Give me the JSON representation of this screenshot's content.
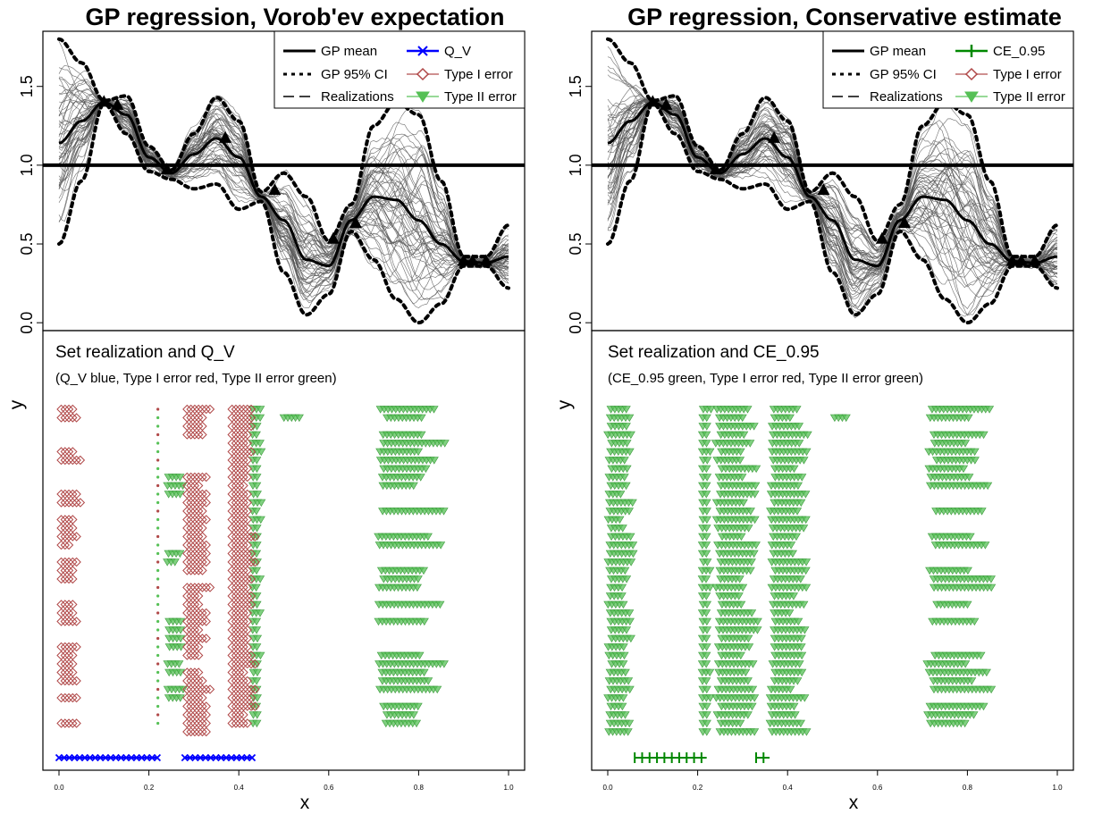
{
  "colors": {
    "black": "#000000",
    "realization": "#555555",
    "qv_blue": "#0000ff",
    "ce_green": "#008800",
    "type1_red": "#b04848",
    "type2_green": "#55c055"
  },
  "chart_data": [
    {
      "type": "line",
      "title": "GP regression, Vorob'ev expectation",
      "ylabel": "",
      "xlim": [
        0,
        1
      ],
      "ylim": [
        -0.05,
        1.85
      ],
      "yticks": [
        "0.0",
        "0.5",
        "1.0",
        "1.5"
      ],
      "threshold": 1.0,
      "legend_position": "top-right",
      "legend": [
        "GP mean",
        "GP 95% CI",
        "Realizations",
        "Q_V",
        "Type I error",
        "Type II error"
      ],
      "design_points": [
        [
          0.1,
          1.4
        ],
        [
          0.13,
          1.38
        ],
        [
          0.24,
          0.97
        ],
        [
          0.37,
          1.17
        ],
        [
          0.48,
          0.84
        ],
        [
          0.61,
          0.53
        ],
        [
          0.66,
          0.63
        ],
        [
          0.9,
          0.39
        ],
        [
          0.92,
          0.39
        ],
        [
          0.95,
          0.39
        ]
      ],
      "series": [
        {
          "name": "GP mean",
          "style": "solid",
          "x": [
            0,
            0.05,
            0.1,
            0.15,
            0.2,
            0.25,
            0.3,
            0.35,
            0.4,
            0.45,
            0.5,
            0.55,
            0.6,
            0.65,
            0.7,
            0.75,
            0.8,
            0.85,
            0.9,
            0.95,
            1.0
          ],
          "y": [
            1.14,
            1.28,
            1.4,
            1.32,
            1.05,
            0.95,
            1.07,
            1.17,
            1.05,
            0.8,
            0.65,
            0.4,
            0.36,
            0.65,
            0.8,
            0.78,
            0.65,
            0.5,
            0.39,
            0.38,
            0.42
          ]
        },
        {
          "name": "GP 95% CI upper",
          "style": "dotted",
          "x": [
            0,
            0.05,
            0.1,
            0.15,
            0.2,
            0.25,
            0.3,
            0.35,
            0.4,
            0.45,
            0.5,
            0.55,
            0.6,
            0.65,
            0.7,
            0.75,
            0.8,
            0.85,
            0.9,
            0.95,
            1.0
          ],
          "y": [
            1.8,
            1.65,
            1.41,
            1.44,
            1.12,
            0.97,
            1.2,
            1.43,
            1.28,
            0.83,
            0.95,
            0.8,
            0.52,
            0.75,
            1.25,
            1.4,
            1.32,
            0.9,
            0.42,
            0.42,
            0.62
          ]
        },
        {
          "name": "GP 95% CI lower",
          "style": "dotted",
          "x": [
            0,
            0.05,
            0.1,
            0.15,
            0.2,
            0.25,
            0.3,
            0.35,
            0.4,
            0.45,
            0.5,
            0.55,
            0.6,
            0.65,
            0.7,
            0.75,
            0.8,
            0.85,
            0.9,
            0.95,
            1.0
          ],
          "y": [
            0.5,
            0.9,
            1.39,
            1.2,
            0.96,
            0.91,
            0.85,
            0.88,
            0.72,
            0.77,
            0.32,
            0.05,
            0.18,
            0.58,
            0.4,
            0.15,
            0.0,
            0.12,
            0.36,
            0.36,
            0.22
          ]
        }
      ]
    },
    {
      "type": "line",
      "title": "GP regression, Conservative estimate",
      "ylabel": "",
      "xlim": [
        0,
        1
      ],
      "ylim": [
        -0.05,
        1.85
      ],
      "yticks": [
        "0.0",
        "0.5",
        "1.0",
        "1.5"
      ],
      "threshold": 1.0,
      "legend_position": "top-right",
      "legend": [
        "GP mean",
        "GP 95% CI",
        "Realizations",
        "CE_0.95",
        "Type I error",
        "Type II error"
      ],
      "design_points": [
        [
          0.1,
          1.4
        ],
        [
          0.13,
          1.38
        ],
        [
          0.24,
          0.97
        ],
        [
          0.37,
          1.17
        ],
        [
          0.48,
          0.84
        ],
        [
          0.61,
          0.53
        ],
        [
          0.66,
          0.63
        ],
        [
          0.9,
          0.39
        ],
        [
          0.92,
          0.39
        ],
        [
          0.95,
          0.39
        ]
      ],
      "series": [
        {
          "name": "GP mean",
          "style": "solid",
          "x": [
            0,
            0.05,
            0.1,
            0.15,
            0.2,
            0.25,
            0.3,
            0.35,
            0.4,
            0.45,
            0.5,
            0.55,
            0.6,
            0.65,
            0.7,
            0.75,
            0.8,
            0.85,
            0.9,
            0.95,
            1.0
          ],
          "y": [
            1.14,
            1.28,
            1.4,
            1.32,
            1.05,
            0.95,
            1.07,
            1.17,
            1.05,
            0.8,
            0.65,
            0.4,
            0.36,
            0.65,
            0.8,
            0.78,
            0.65,
            0.5,
            0.39,
            0.38,
            0.42
          ]
        },
        {
          "name": "GP 95% CI upper",
          "style": "dotted",
          "x": [
            0,
            0.05,
            0.1,
            0.15,
            0.2,
            0.25,
            0.3,
            0.35,
            0.4,
            0.45,
            0.5,
            0.55,
            0.6,
            0.65,
            0.7,
            0.75,
            0.8,
            0.85,
            0.9,
            0.95,
            1.0
          ],
          "y": [
            1.8,
            1.65,
            1.41,
            1.44,
            1.12,
            0.97,
            1.2,
            1.43,
            1.28,
            0.83,
            0.95,
            0.8,
            0.52,
            0.75,
            1.25,
            1.4,
            1.32,
            0.9,
            0.42,
            0.42,
            0.62
          ]
        },
        {
          "name": "GP 95% CI lower",
          "style": "dotted",
          "x": [
            0,
            0.05,
            0.1,
            0.15,
            0.2,
            0.25,
            0.3,
            0.35,
            0.4,
            0.45,
            0.5,
            0.55,
            0.6,
            0.65,
            0.7,
            0.75,
            0.8,
            0.85,
            0.9,
            0.95,
            1.0
          ],
          "y": [
            0.5,
            0.9,
            1.39,
            1.2,
            0.96,
            0.91,
            0.85,
            0.88,
            0.72,
            0.77,
            0.32,
            0.05,
            0.18,
            0.58,
            0.4,
            0.15,
            0.0,
            0.12,
            0.36,
            0.36,
            0.22
          ]
        }
      ]
    },
    {
      "type": "scatter",
      "title": "Set realization and Q_V",
      "subtitle": "(Q_V blue, Type I error red, Type II error green)",
      "xlabel": "x",
      "ylabel": "y",
      "xlim": [
        0,
        1
      ],
      "xticks": [
        "0.0",
        "0.2",
        "0.4",
        "0.6",
        "0.8",
        "1.0"
      ],
      "rows": 40,
      "estimate": {
        "name": "Q_V",
        "segments": [
          [
            0.0,
            0.22
          ],
          [
            0.28,
            0.43
          ]
        ]
      },
      "type1_bands": [
        {
          "x": [
            0.0,
            0.05
          ],
          "rows": [
            0,
            1,
            5,
            6,
            10,
            11,
            13,
            14,
            15,
            16,
            18,
            19,
            20,
            23,
            24,
            25,
            28,
            29,
            30,
            31,
            32,
            34,
            37
          ]
        },
        {
          "x": [
            0.28,
            0.34
          ],
          "rows": [
            0,
            1,
            2,
            3,
            8,
            9,
            10,
            11,
            12,
            13,
            14,
            15,
            16,
            17,
            18,
            19,
            21,
            22,
            23,
            24,
            25,
            26,
            27,
            28,
            29,
            31,
            32,
            33,
            34,
            35,
            36,
            37,
            38
          ]
        },
        {
          "x": [
            0.38,
            0.44
          ],
          "rows": [
            0,
            1,
            2,
            3,
            4,
            5,
            6,
            7,
            8,
            9,
            10,
            11,
            12,
            13,
            14,
            15,
            16,
            17,
            18,
            19,
            20,
            21,
            22,
            23,
            24,
            25,
            26,
            27,
            28,
            29,
            30,
            31,
            32,
            33,
            34,
            35,
            36,
            37
          ]
        }
      ],
      "type2_bands": [
        {
          "x": [
            0.71,
            0.86
          ],
          "rows": [
            0,
            1,
            3,
            4,
            5,
            6,
            7,
            8,
            9,
            12,
            15,
            16,
            19,
            20,
            21,
            23,
            25,
            29,
            30,
            31,
            32,
            33,
            35,
            36,
            37
          ]
        },
        {
          "x": [
            0.5,
            0.54
          ],
          "rows": [
            1
          ]
        },
        {
          "x": [
            0.24,
            0.28
          ],
          "rows": [
            8,
            9,
            10,
            17,
            18,
            25,
            26,
            27,
            28,
            30,
            31,
            33,
            34
          ]
        },
        {
          "x": [
            0.43,
            0.45
          ],
          "rows": [
            0,
            1,
            2,
            3,
            4,
            5,
            6,
            7,
            8,
            9,
            10,
            11,
            12,
            13,
            14,
            15,
            16,
            17,
            18,
            19,
            20,
            21,
            22,
            23,
            24,
            25,
            26,
            27,
            28,
            29,
            30,
            31,
            32,
            33,
            34,
            35,
            36,
            37
          ]
        }
      ],
      "small_dots": {
        "x": 0.22,
        "rows": [
          0,
          1,
          2,
          3,
          4,
          5,
          6,
          7,
          8,
          9,
          10,
          11,
          12,
          13,
          14,
          15,
          16,
          17,
          18,
          19,
          20,
          21,
          22,
          23,
          24,
          25,
          26,
          27,
          28,
          29,
          30,
          31,
          32,
          33,
          34,
          35,
          36,
          37
        ]
      }
    },
    {
      "type": "scatter",
      "title": "Set realization and CE_0.95",
      "subtitle": "(CE_0.95 green, Type I error red, Type II error green)",
      "xlabel": "x",
      "ylabel": "y",
      "xlim": [
        0,
        1
      ],
      "xticks": [
        "0.0",
        "0.2",
        "0.4",
        "0.6",
        "0.8",
        "1.0"
      ],
      "rows": 40,
      "estimate": {
        "name": "CE_0.95",
        "segments": [
          [
            0.06,
            0.22
          ],
          [
            0.33,
            0.36
          ]
        ]
      },
      "type1_bands": [],
      "type2_bands": [
        {
          "x": [
            0.0,
            0.06
          ],
          "rows": [
            0,
            1,
            2,
            3,
            4,
            5,
            6,
            7,
            8,
            9,
            10,
            11,
            12,
            13,
            14,
            15,
            16,
            17,
            18,
            19,
            20,
            21,
            22,
            23,
            24,
            25,
            26,
            27,
            28,
            29,
            30,
            31,
            32,
            33,
            34,
            35,
            36,
            37,
            38
          ]
        },
        {
          "x": [
            0.21,
            0.23
          ],
          "rows": [
            0,
            1,
            2,
            3,
            4,
            5,
            6,
            7,
            8,
            9,
            10,
            11,
            12,
            13,
            14,
            15,
            16,
            17,
            18,
            19,
            20,
            21,
            22,
            23,
            24,
            25,
            26,
            27,
            28,
            29,
            30,
            31,
            32,
            33,
            34,
            35,
            36,
            37,
            38
          ]
        },
        {
          "x": [
            0.24,
            0.34
          ],
          "rows": [
            0,
            1,
            2,
            3,
            4,
            5,
            6,
            7,
            8,
            9,
            10,
            11,
            12,
            13,
            14,
            15,
            16,
            17,
            18,
            19,
            20,
            21,
            22,
            23,
            24,
            25,
            26,
            27,
            28,
            29,
            30,
            31,
            32,
            33,
            34,
            35,
            36,
            37,
            38
          ]
        },
        {
          "x": [
            0.36,
            0.45
          ],
          "rows": [
            0,
            1,
            2,
            3,
            4,
            5,
            6,
            7,
            8,
            9,
            10,
            11,
            12,
            13,
            14,
            15,
            16,
            17,
            18,
            19,
            20,
            21,
            22,
            23,
            24,
            25,
            26,
            27,
            28,
            29,
            30,
            31,
            32,
            33,
            34,
            35,
            36,
            37,
            38
          ]
        },
        {
          "x": [
            0.71,
            0.86
          ],
          "rows": [
            0,
            1,
            3,
            4,
            5,
            6,
            7,
            8,
            9,
            12,
            15,
            16,
            19,
            20,
            21,
            23,
            25,
            29,
            30,
            31,
            32,
            33,
            35,
            36,
            37
          ]
        },
        {
          "x": [
            0.5,
            0.54
          ],
          "rows": [
            1
          ]
        }
      ],
      "small_dots": null
    }
  ]
}
